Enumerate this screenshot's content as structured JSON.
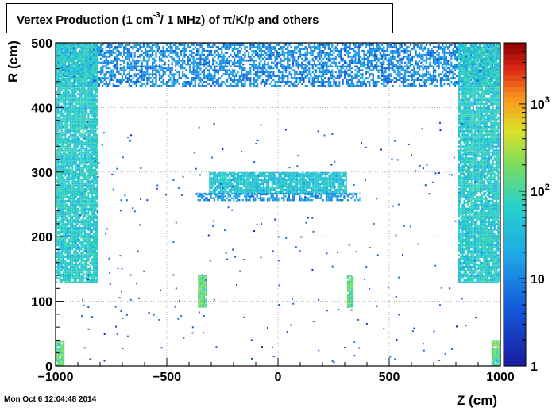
{
  "title": {
    "part1": "Vertex Production (1 cm",
    "sup": "-3",
    "part2": "/ 1 MHz) of ",
    "particles": "π/K/p and others"
  },
  "timestamp": "Mon Oct  6 12:04:48 2014",
  "colors": {
    "low": "#1a1aa0",
    "mid": "#23c8e0",
    "high": "#c8e628",
    "max": "#8b0000",
    "frame": "#000000"
  },
  "chart_data": {
    "type": "heatmap",
    "title": "Vertex Production (1 cm-3 / 1 MHz) of π/K/p and others",
    "xlabel": "Z (cm)",
    "ylabel": "R (cm)",
    "xlim": [
      -1000,
      1000
    ],
    "ylim": [
      0,
      500
    ],
    "x_ticks": [
      "−1000",
      "−500",
      "0",
      "500",
      "1000"
    ],
    "y_ticks": [
      "0",
      "100",
      "200",
      "300",
      "400",
      "500"
    ],
    "grid": true,
    "colorbar": {
      "scale": "log",
      "range": [
        1,
        5000
      ],
      "tick_labels": [
        {
          "base": "1",
          "exp": ""
        },
        {
          "base": "10",
          "exp": ""
        },
        {
          "base": "10",
          "exp": "2"
        },
        {
          "base": "10",
          "exp": "3"
        }
      ]
    },
    "regions": [
      {
        "name": "calorimeter-top-band",
        "z": [
          -1000,
          1000
        ],
        "r": [
          432,
          500
        ],
        "level": 12
      },
      {
        "name": "endcap-left",
        "z": [
          -1000,
          -810
        ],
        "r": [
          128,
          500
        ],
        "level": 60
      },
      {
        "name": "endcap-right",
        "z": [
          810,
          1000
        ],
        "r": [
          128,
          500
        ],
        "level": 60
      },
      {
        "name": "tracker-outer-modules",
        "z": [
          -310,
          310
        ],
        "r": [
          265,
          300
        ],
        "level": 50
      },
      {
        "name": "tracker-barrel-ring",
        "z": [
          -370,
          370
        ],
        "r": [
          255,
          268
        ],
        "level": 15
      },
      {
        "name": "tracker-inner-left",
        "z": [
          -360,
          -320
        ],
        "r": [
          90,
          140
        ],
        "level": 150
      },
      {
        "name": "tracker-inner-right",
        "z": [
          310,
          340
        ],
        "r": [
          90,
          140
        ],
        "level": 150
      },
      {
        "name": "beam-pipe-left",
        "z": [
          -1000,
          -960
        ],
        "r": [
          0,
          40
        ],
        "level": 150
      },
      {
        "name": "beam-pipe-right",
        "z": [
          960,
          1000
        ],
        "r": [
          0,
          40
        ],
        "level": 150
      }
    ]
  }
}
